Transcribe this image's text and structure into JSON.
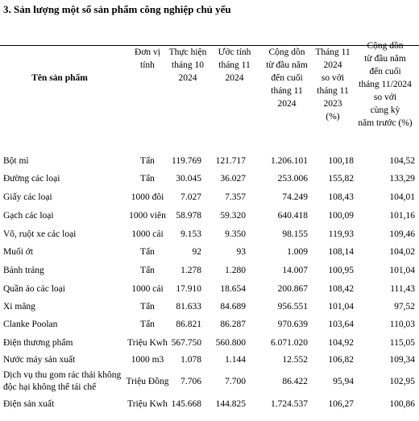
{
  "title": "3. Sản lượng một số sản phẩm công nghiệp chủ yếu",
  "table": {
    "header": [
      "Tên sản phẩm",
      "Đơn vị\ntính",
      "Thực hiện\ntháng 10\n2024",
      "Ước tính\ntháng 11\n2024",
      "Cộng dồn\ntừ đầu năm\nđến cuối\ntháng 11\n2024",
      "Tháng 11\n2024\nso với\ntháng 11\n2023\n(%)",
      "Cộng dồn\ntừ đầu năm\nđến cuối\ntháng 11/2024\nso với\ncùng kỳ\nnăm trước (%)"
    ],
    "rows": [
      [
        "Bột mì",
        "Tấn",
        "119.769",
        "121.717",
        "1.206.101",
        "100,18",
        "104,52"
      ],
      [
        "Đường các loại",
        "Tấn",
        "30.045",
        "36.027",
        "253.006",
        "155,82",
        "133,29"
      ],
      [
        "Giấy các loại",
        "1000 đôi",
        "7.027",
        "7.357",
        "74.249",
        "108,43",
        "104,01"
      ],
      [
        "Gạch các loại",
        "1000 viên",
        "58.978",
        "59.320",
        "640.418",
        "100,09",
        "101,16"
      ],
      [
        "Võ, ruột xe các loại",
        "1000 cái",
        "9.153",
        "9.350",
        "98.155",
        "119,93",
        "109,46"
      ],
      [
        "Muối ớt",
        "Tấn",
        "92",
        "93",
        "1.009",
        "108,14",
        "104,02"
      ],
      [
        "Bánh tráng",
        "Tấn",
        "1.278",
        "1.280",
        "14.007",
        "100,95",
        "101,04"
      ],
      [
        "Quần áo các loại",
        "1000 cái",
        "17.910",
        "18.654",
        "200.867",
        "108,42",
        "111,43"
      ],
      [
        "Xi măng",
        "Tấn",
        "81.633",
        "84.689",
        "956.551",
        "101,04",
        "97,52"
      ],
      [
        "Clanke Poolan",
        "Tấn",
        "86.821",
        "86.287",
        "970.639",
        "103,64",
        "110,03"
      ],
      [
        "Điện thương phẩm",
        "Triệu Kwh",
        "567.750",
        "560.800",
        "6.071.020",
        "104,92",
        "115,05"
      ],
      [
        "Nước máy sản xuất",
        "1000 m3",
        "1.078",
        "1.144",
        "12.552",
        "106,82",
        "109,34"
      ],
      [
        "Dịch vụ thu gom rác thải không\nđộc hại không thể tái chế",
        "Triệu Đồng",
        "7.706",
        "7.700",
        "86.422",
        "95,94",
        "102,95"
      ],
      [
        "Điện sản xuất",
        "Triệu Kwh",
        "145.668",
        "144.825",
        "1.724.537",
        "106,27",
        "100,86"
      ]
    ]
  }
}
